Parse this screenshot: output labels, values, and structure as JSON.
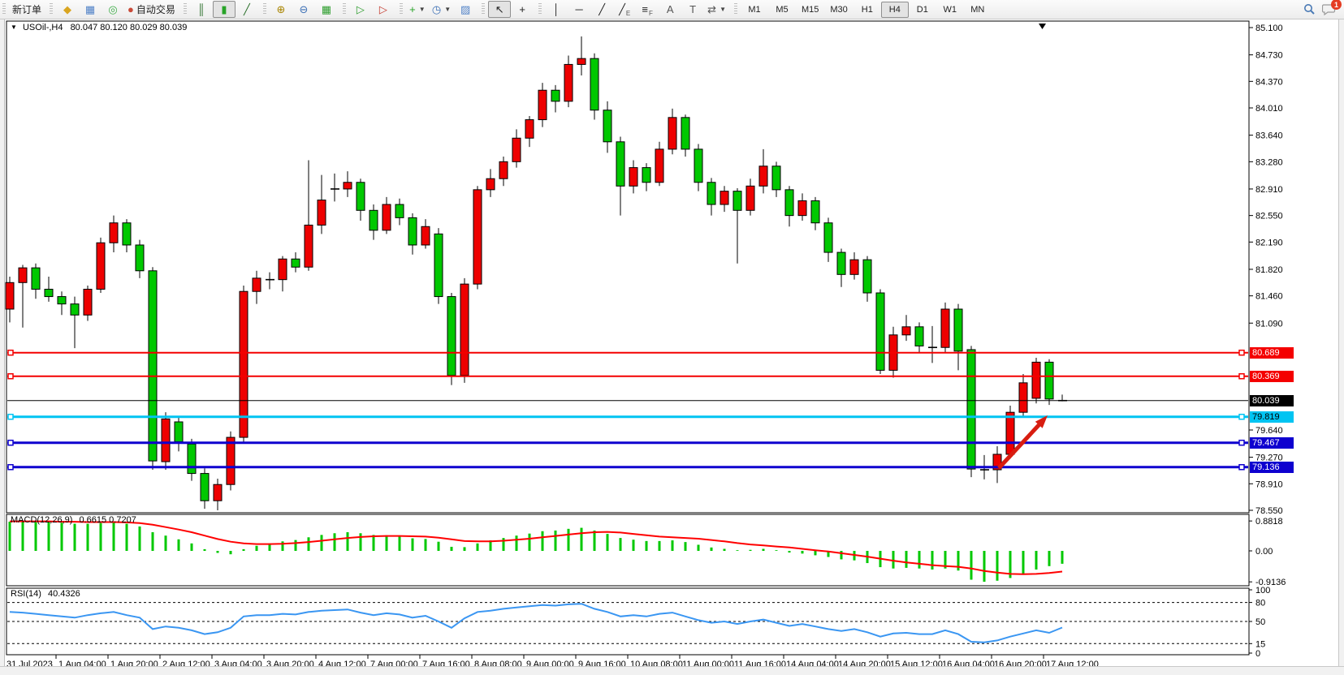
{
  "symbol_bar": {
    "symbol": "USOil-,H4",
    "ohlc": "80.047 80.120 80.029 80.039"
  },
  "toolbar": {
    "left_groups": [
      {
        "items": [
          {
            "name": "new-order-button",
            "label": "新订单"
          }
        ]
      },
      {
        "items": [
          {
            "name": "chart-window-icon",
            "glyph": "◆",
            "color": "#d9a520"
          },
          {
            "name": "market-watch-icon",
            "glyph": "▦",
            "color": "#4f81c7"
          },
          {
            "name": "signals-icon",
            "glyph": "◎",
            "color": "#3fae49"
          },
          {
            "name": "autotrading-button",
            "glyph": "●",
            "color": "#c94a38",
            "label": "自动交易"
          }
        ]
      },
      {
        "items": [
          {
            "name": "bar-chart-icon",
            "glyph": "║",
            "color": "#2a6f2a"
          },
          {
            "name": "candlestick-chart-icon",
            "glyph": "▮",
            "color": "#27a327",
            "active": true
          },
          {
            "name": "line-chart-icon",
            "glyph": "╱",
            "color": "#2a6f2a"
          }
        ]
      },
      {
        "items": [
          {
            "name": "zoom-in-icon",
            "glyph": "⊕",
            "color": "#a98500"
          },
          {
            "name": "zoom-out-icon",
            "glyph": "⊖",
            "color": "#3b6fb5"
          },
          {
            "name": "tile-windows-icon",
            "glyph": "▦",
            "color": "#2f9e2f"
          }
        ]
      },
      {
        "items": [
          {
            "name": "auto-scroll-icon",
            "glyph": "▷",
            "color": "#2f9e2f"
          },
          {
            "name": "chart-shift-icon",
            "glyph": "▷",
            "color": "#c43b2f"
          }
        ]
      },
      {
        "items": [
          {
            "name": "indicators-icon",
            "glyph": "+",
            "color": "#27a327",
            "dropdown": true
          },
          {
            "name": "periods-icon",
            "glyph": "◷",
            "color": "#3b6fb5",
            "dropdown": true
          },
          {
            "name": "templates-icon",
            "glyph": "▨",
            "color": "#4f81c7"
          }
        ]
      },
      {
        "items": [
          {
            "name": "cursor-icon",
            "glyph": "↖",
            "color": "#222",
            "active": true
          },
          {
            "name": "crosshair-icon",
            "glyph": "+",
            "color": "#222"
          }
        ]
      },
      {
        "items": [
          {
            "name": "vertical-line-icon",
            "glyph": "│",
            "color": "#222"
          },
          {
            "name": "horizontal-line-icon",
            "glyph": "─",
            "color": "#222"
          },
          {
            "name": "trendline-icon",
            "glyph": "╱",
            "color": "#222"
          },
          {
            "name": "equidistant-channel-icon",
            "glyph": "╱",
            "sub": "E",
            "color": "#222"
          },
          {
            "name": "fibonacci-icon",
            "glyph": "≡",
            "sub": "F",
            "color": "#222"
          },
          {
            "name": "text-icon",
            "glyph": "A",
            "color": "#555"
          },
          {
            "name": "text-label-icon",
            "glyph": "T",
            "color": "#555"
          },
          {
            "name": "arrows-icon",
            "glyph": "⇄",
            "color": "#555",
            "dropdown": true
          }
        ]
      }
    ],
    "timeframes": {
      "active": "H4",
      "items": [
        "M1",
        "M5",
        "M15",
        "M30",
        "H1",
        "H4",
        "D1",
        "W1",
        "MN"
      ]
    },
    "right": {
      "notification_count": "1"
    }
  },
  "chart_data": {
    "type": "candlestick",
    "title": "USOil-,H4",
    "colors": {
      "up": "#ee0000",
      "down": "#00c800",
      "wick": "#000000",
      "macd_hist": "#00c800",
      "macd_signal": "#ff0000",
      "rsi_line": "#3a96f2",
      "arrow": "#d81d10"
    },
    "y_axis": {
      "min": 78.55,
      "max": 85.1,
      "ticks": [
        85.1,
        84.73,
        84.37,
        84.01,
        83.64,
        83.28,
        82.91,
        82.55,
        82.19,
        81.82,
        81.46,
        81.09,
        79.64,
        79.27,
        78.91,
        78.55
      ]
    },
    "x_labels": [
      "31 Jul 2023",
      "1 Aug 04:00",
      "1 Aug 20:00",
      "2 Aug 12:00",
      "3 Aug 04:00",
      "3 Aug 20:00",
      "4 Aug 12:00",
      "7 Aug 00:00",
      "7 Aug 16:00",
      "8 Aug 08:00",
      "9 Aug 00:00",
      "9 Aug 16:00",
      "10 Aug 08:00",
      "11 Aug 00:00",
      "11 Aug 16:00",
      "14 Aug 04:00",
      "14 Aug 20:00",
      "15 Aug 12:00",
      "16 Aug 04:00",
      "16 Aug 20:00",
      "17 Aug 12:00"
    ],
    "price_lines": [
      {
        "label": "80.689",
        "price": 80.689,
        "color": "#f40000",
        "text_color": "#ffffff",
        "width": 2,
        "handles": true
      },
      {
        "label": "80.369",
        "price": 80.369,
        "color": "#f40000",
        "text_color": "#ffffff",
        "width": 2,
        "handles": true
      },
      {
        "label": "80.039",
        "price": 80.039,
        "color": "#000000",
        "text_color": "#ffffff",
        "width": 1,
        "handles": false
      },
      {
        "label": "79.819",
        "price": 79.819,
        "color": "#00c4f2",
        "text_color": "#000000",
        "width": 3,
        "handles": true
      },
      {
        "label": "79.467",
        "price": 79.467,
        "color": "#0e00cf",
        "text_color": "#ffffff",
        "width": 3,
        "handles": true
      },
      {
        "label": "79.136",
        "price": 79.136,
        "color": "#0e00cf",
        "text_color": "#ffffff",
        "width": 3,
        "handles": true
      }
    ],
    "candles": [
      [
        81.28,
        81.72,
        81.1,
        81.64
      ],
      [
        81.64,
        81.88,
        81.03,
        81.84
      ],
      [
        81.84,
        81.9,
        81.42,
        81.55
      ],
      [
        81.55,
        81.72,
        81.38,
        81.45
      ],
      [
        81.45,
        81.52,
        81.2,
        81.35
      ],
      [
        81.35,
        81.45,
        80.75,
        81.2
      ],
      [
        81.2,
        81.6,
        81.12,
        81.55
      ],
      [
        81.55,
        82.25,
        81.5,
        82.18
      ],
      [
        82.18,
        82.55,
        82.05,
        82.45
      ],
      [
        82.45,
        82.5,
        82.05,
        82.15
      ],
      [
        82.15,
        82.22,
        81.7,
        81.8
      ],
      [
        81.8,
        81.85,
        79.1,
        79.22
      ],
      [
        79.21,
        79.88,
        79.1,
        79.79
      ],
      [
        79.75,
        79.82,
        79.35,
        79.48
      ],
      [
        79.45,
        79.52,
        78.95,
        79.05
      ],
      [
        79.05,
        79.12,
        78.57,
        78.68
      ],
      [
        78.68,
        78.98,
        78.55,
        78.9
      ],
      [
        78.9,
        79.62,
        78.82,
        79.54
      ],
      [
        79.54,
        81.6,
        79.48,
        81.52
      ],
      [
        81.52,
        81.8,
        81.35,
        81.7
      ],
      [
        81.7,
        81.78,
        81.55,
        81.68
      ],
      [
        81.68,
        82.0,
        81.52,
        81.96
      ],
      [
        81.96,
        82.05,
        81.78,
        81.85
      ],
      [
        81.85,
        83.3,
        81.8,
        82.42
      ],
      [
        82.42,
        83.1,
        82.3,
        82.76
      ],
      [
        82.89,
        83.12,
        82.74,
        82.91
      ],
      [
        82.91,
        83.15,
        82.8,
        83.0
      ],
      [
        83.0,
        83.05,
        82.48,
        82.62
      ],
      [
        82.62,
        82.7,
        82.22,
        82.35
      ],
      [
        82.35,
        82.8,
        82.3,
        82.7
      ],
      [
        82.7,
        82.78,
        82.42,
        82.52
      ],
      [
        82.52,
        82.58,
        82.02,
        82.15
      ],
      [
        82.15,
        82.5,
        82.1,
        82.4
      ],
      [
        82.3,
        82.38,
        81.35,
        81.45
      ],
      [
        81.45,
        81.5,
        80.25,
        80.38
      ],
      [
        80.38,
        81.7,
        80.28,
        81.62
      ],
      [
        81.62,
        82.95,
        81.55,
        82.9
      ],
      [
        82.9,
        83.18,
        82.8,
        83.05
      ],
      [
        83.05,
        83.35,
        82.95,
        83.28
      ],
      [
        83.28,
        83.72,
        83.2,
        83.6
      ],
      [
        83.6,
        83.9,
        83.48,
        83.85
      ],
      [
        83.85,
        84.35,
        83.75,
        84.25
      ],
      [
        84.25,
        84.32,
        83.95,
        84.1
      ],
      [
        84.1,
        84.72,
        84.02,
        84.6
      ],
      [
        84.6,
        84.98,
        84.45,
        84.68
      ],
      [
        84.68,
        84.75,
        83.85,
        83.98
      ],
      [
        83.98,
        84.1,
        83.4,
        83.55
      ],
      [
        83.55,
        83.62,
        82.55,
        82.95
      ],
      [
        82.95,
        83.3,
        82.85,
        83.2
      ],
      [
        83.2,
        83.26,
        82.88,
        83.0
      ],
      [
        83.0,
        83.55,
        82.95,
        83.45
      ],
      [
        83.45,
        84.0,
        83.38,
        83.88
      ],
      [
        83.88,
        83.92,
        83.35,
        83.45
      ],
      [
        83.45,
        83.52,
        82.88,
        83.0
      ],
      [
        83.0,
        83.06,
        82.55,
        82.7
      ],
      [
        82.7,
        82.95,
        82.6,
        82.88
      ],
      [
        82.88,
        82.92,
        81.9,
        82.62
      ],
      [
        82.62,
        83.05,
        82.55,
        82.95
      ],
      [
        82.95,
        83.45,
        82.85,
        83.22
      ],
      [
        83.22,
        83.28,
        82.8,
        82.9
      ],
      [
        82.9,
        82.95,
        82.4,
        82.55
      ],
      [
        82.55,
        82.85,
        82.48,
        82.75
      ],
      [
        82.75,
        82.8,
        82.35,
        82.45
      ],
      [
        82.45,
        82.52,
        81.92,
        82.05
      ],
      [
        82.05,
        82.1,
        81.58,
        81.75
      ],
      [
        81.75,
        82.05,
        81.68,
        81.95
      ],
      [
        81.95,
        82.0,
        81.38,
        81.5
      ],
      [
        81.5,
        81.55,
        80.4,
        80.45
      ],
      [
        80.45,
        81.04,
        80.35,
        80.93
      ],
      [
        80.93,
        81.2,
        80.85,
        81.04
      ],
      [
        81.04,
        81.1,
        80.68,
        80.78
      ],
      [
        80.78,
        81.05,
        80.55,
        80.76
      ],
      [
        80.76,
        81.37,
        80.68,
        81.28
      ],
      [
        81.28,
        81.35,
        80.45,
        80.71
      ],
      [
        80.73,
        80.78,
        79.0,
        79.11
      ],
      [
        79.12,
        79.3,
        78.97,
        79.1
      ],
      [
        79.1,
        79.42,
        78.92,
        79.31
      ],
      [
        79.31,
        79.97,
        79.25,
        79.88
      ],
      [
        79.88,
        80.4,
        79.82,
        80.28
      ],
      [
        80.07,
        80.62,
        80.0,
        80.56
      ],
      [
        80.56,
        80.6,
        79.98,
        80.06
      ],
      [
        80.047,
        80.12,
        80.029,
        80.039
      ]
    ],
    "indicators": {
      "macd": {
        "label": "MACD(12,26,9)",
        "values_text": "0.6615 0.7207",
        "axis": [
          "0.8818",
          "0.00",
          "-0.9136"
        ],
        "axis_values": [
          0.8818,
          0,
          -0.9136
        ],
        "histogram": [
          0.86,
          0.88,
          0.87,
          0.85,
          0.83,
          0.8,
          0.8,
          0.82,
          0.84,
          0.8,
          0.72,
          0.55,
          0.45,
          0.34,
          0.22,
          0.05,
          -0.06,
          -0.1,
          0.05,
          0.15,
          0.22,
          0.28,
          0.32,
          0.4,
          0.47,
          0.52,
          0.55,
          0.52,
          0.47,
          0.46,
          0.43,
          0.37,
          0.35,
          0.27,
          0.12,
          0.11,
          0.22,
          0.31,
          0.38,
          0.45,
          0.51,
          0.58,
          0.6,
          0.65,
          0.68,
          0.6,
          0.5,
          0.38,
          0.33,
          0.29,
          0.29,
          0.31,
          0.26,
          0.18,
          0.1,
          0.06,
          0.02,
          0.03,
          0.06,
          0.02,
          -0.05,
          -0.08,
          -0.13,
          -0.18,
          -0.25,
          -0.28,
          -0.36,
          -0.48,
          -0.52,
          -0.5,
          -0.52,
          -0.55,
          -0.52,
          -0.58,
          -0.85,
          -0.91,
          -0.88,
          -0.8,
          -0.68,
          -0.55,
          -0.45,
          -0.38
        ],
        "signal": [
          0.87,
          0.87,
          0.87,
          0.87,
          0.86,
          0.86,
          0.85,
          0.85,
          0.85,
          0.84,
          0.82,
          0.77,
          0.7,
          0.63,
          0.55,
          0.45,
          0.35,
          0.27,
          0.22,
          0.2,
          0.2,
          0.21,
          0.23,
          0.26,
          0.3,
          0.34,
          0.38,
          0.41,
          0.43,
          0.44,
          0.44,
          0.43,
          0.42,
          0.39,
          0.34,
          0.29,
          0.28,
          0.28,
          0.3,
          0.33,
          0.36,
          0.4,
          0.44,
          0.48,
          0.52,
          0.55,
          0.56,
          0.54,
          0.5,
          0.46,
          0.42,
          0.4,
          0.38,
          0.36,
          0.32,
          0.28,
          0.23,
          0.19,
          0.16,
          0.13,
          0.1,
          0.06,
          0.02,
          -0.02,
          -0.07,
          -0.12,
          -0.17,
          -0.23,
          -0.29,
          -0.34,
          -0.38,
          -0.42,
          -0.45,
          -0.47,
          -0.52,
          -0.59,
          -0.64,
          -0.68,
          -0.69,
          -0.68,
          -0.65,
          -0.61
        ]
      },
      "rsi": {
        "label": "RSI(14)",
        "value_text": "40.4326",
        "axis": [
          "100",
          "80",
          "50",
          "15",
          "0"
        ],
        "axis_values": [
          100,
          80,
          50,
          15,
          0
        ],
        "levels": [
          80,
          50,
          15
        ],
        "series": [
          65,
          64,
          62,
          60,
          58,
          56,
          60,
          63,
          65,
          60,
          56,
          38,
          42,
          40,
          36,
          30,
          33,
          40,
          58,
          60,
          60,
          62,
          61,
          65,
          67,
          68,
          69,
          64,
          60,
          63,
          61,
          56,
          59,
          50,
          40,
          55,
          65,
          67,
          70,
          72,
          74,
          76,
          75,
          77,
          78,
          70,
          65,
          58,
          60,
          58,
          62,
          64,
          58,
          52,
          48,
          50,
          46,
          50,
          53,
          48,
          43,
          46,
          42,
          38,
          35,
          38,
          33,
          26,
          31,
          32,
          30,
          30,
          36,
          30,
          18,
          17,
          20,
          26,
          31,
          36,
          32,
          40.4
        ]
      }
    },
    "annotations": {
      "arrow_up_right": true
    }
  }
}
